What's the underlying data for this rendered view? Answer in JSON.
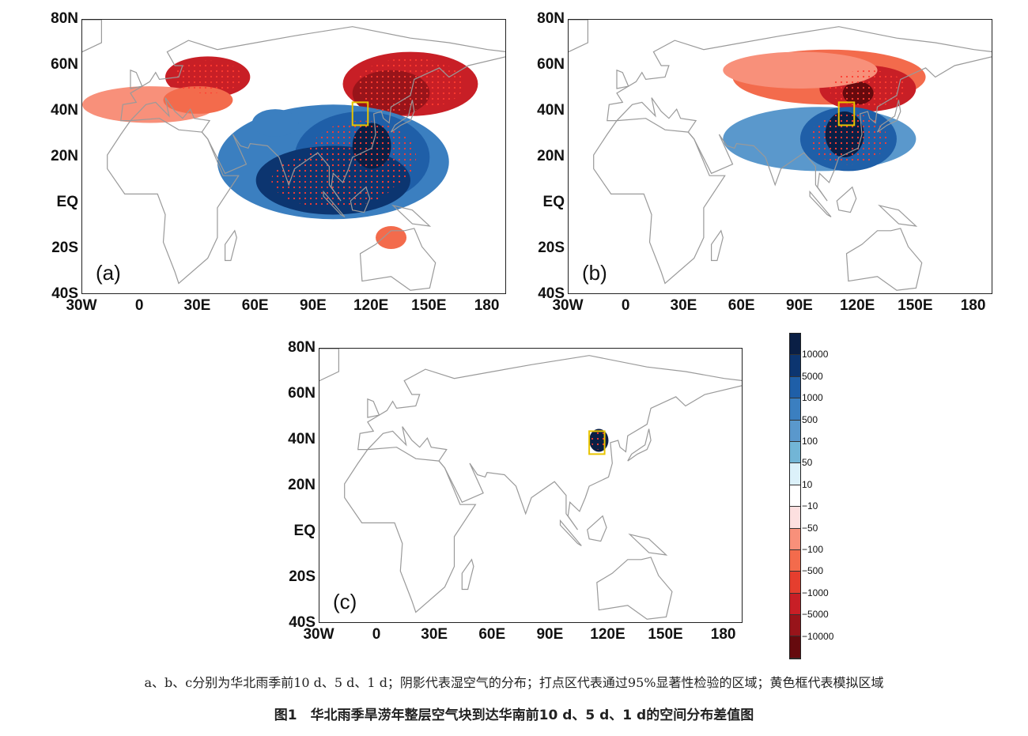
{
  "panels": [
    {
      "label": "(a)",
      "id": "a"
    },
    {
      "label": "(b)",
      "id": "b"
    },
    {
      "label": "(c)",
      "id": "c"
    }
  ],
  "axes": {
    "y_ticks": [
      "80N",
      "60N",
      "40N",
      "20N",
      "EQ",
      "20S",
      "40S"
    ],
    "x_ticks": [
      "30W",
      "0",
      "30E",
      "60E",
      "90E",
      "120E",
      "150E",
      "180"
    ],
    "lon_range": [
      -30,
      190
    ],
    "lat_range": [
      -40,
      80
    ]
  },
  "simulation_box": {
    "lon": [
      110,
      118
    ],
    "lat": [
      34,
      44
    ],
    "color": "#e8c400"
  },
  "colorbar": {
    "colors": [
      "#0a1f45",
      "#0c3570",
      "#1f5fa8",
      "#3b7fc0",
      "#5a98cc",
      "#72b5d6",
      "#dcf1fa",
      "#ffffff",
      "#fde0e0",
      "#f8907a",
      "#f36b4c",
      "#e53e2e",
      "#c81f26",
      "#98141a",
      "#660a0e"
    ],
    "labels": [
      "10000",
      "5000",
      "1000",
      "500",
      "100",
      "50",
      "10",
      "−10",
      "−50",
      "−100",
      "−500",
      "−1000",
      "−5000",
      "−10000"
    ]
  },
  "caption": {
    "note": "a、b、c分别为华北雨季前10 d、5 d、1 d；阴影代表湿空气的分布；打点区代表通过95%显著性检验的区域；黄色框代表模拟区域",
    "title": "图1　华北雨季旱涝年整层空气块到达华南前10 d、5 d、1 d的空间分布差值图"
  }
}
